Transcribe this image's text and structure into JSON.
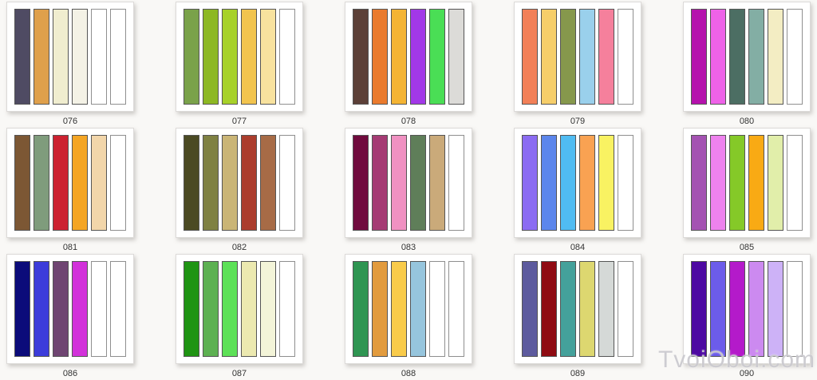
{
  "page": {
    "background": "#f9f8f6",
    "card_background": "#ffffff",
    "swatch_border": "#555555",
    "label_color": "#333333"
  },
  "watermark": {
    "text": "TvoiOboi.com",
    "color": "rgba(201,200,205,0.92)"
  },
  "palettes": [
    {
      "label": "076",
      "colors": [
        "#4f4b63",
        "#dfa04b",
        "#f0edcf",
        "#f4f2e6",
        "#ffffff",
        "#ffffff"
      ]
    },
    {
      "label": "077",
      "colors": [
        "#7aa24a",
        "#8db823",
        "#a7d129",
        "#f2c44e",
        "#f8e29e",
        "#ffffff"
      ]
    },
    {
      "label": "078",
      "colors": [
        "#5c4038",
        "#ea7b2e",
        "#f4b434",
        "#a238e8",
        "#4ade55",
        "#dcdbd8"
      ]
    },
    {
      "label": "079",
      "colors": [
        "#f28058",
        "#f6ce6a",
        "#86984c",
        "#9ad0ec",
        "#f5809c",
        "#ffffff"
      ]
    },
    {
      "label": "080",
      "colors": [
        "#b512ad",
        "#ee62e8",
        "#4c6e63",
        "#83aea4",
        "#f3edc3",
        "#ffffff"
      ]
    },
    {
      "label": "081",
      "colors": [
        "#7c5734",
        "#7f9c7c",
        "#cc2231",
        "#f4a524",
        "#f2d6aa",
        "#ffffff"
      ]
    },
    {
      "label": "082",
      "colors": [
        "#4b4a23",
        "#7f8142",
        "#cab576",
        "#ab3d2d",
        "#a76b46",
        "#ffffff"
      ]
    },
    {
      "label": "083",
      "colors": [
        "#700b3e",
        "#a53b74",
        "#f091c2",
        "#5f7e59",
        "#caaa7a",
        "#ffffff"
      ]
    },
    {
      "label": "084",
      "colors": [
        "#8b6cf2",
        "#5c86ec",
        "#50bcf2",
        "#f9a252",
        "#f9f262",
        "#ffffff"
      ]
    },
    {
      "label": "085",
      "colors": [
        "#a452b2",
        "#ee82ee",
        "#85c928",
        "#f9aa14",
        "#e1eeaa",
        "#ffffff"
      ]
    },
    {
      "label": "086",
      "colors": [
        "#0b0b7a",
        "#3c3cda",
        "#6f4572",
        "#d232da",
        "#ffffff",
        "#ffffff"
      ]
    },
    {
      "label": "087",
      "colors": [
        "#1f9413",
        "#5db152",
        "#5de157",
        "#ece9b0",
        "#f3f4d8",
        "#ffffff"
      ]
    },
    {
      "label": "088",
      "colors": [
        "#2f9552",
        "#e29b3e",
        "#f9cb4a",
        "#96c5dd",
        "#ffffff",
        "#ffffff"
      ]
    },
    {
      "label": "089",
      "colors": [
        "#5d5b9e",
        "#8f0b13",
        "#44a19b",
        "#ddd770",
        "#d5d9d7",
        "#ffffff"
      ]
    },
    {
      "label": "090",
      "colors": [
        "#4d09a2",
        "#6c5cea",
        "#b41aca",
        "#cc8af0",
        "#cdb2f7",
        "#ffffff"
      ]
    }
  ]
}
